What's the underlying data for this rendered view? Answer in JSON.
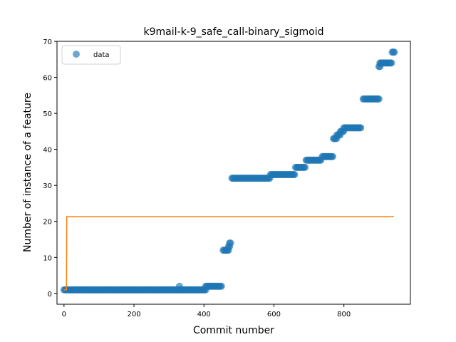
{
  "chart_data": {
    "type": "scatter",
    "title": "k9mail-k-9_safe_call-binary_sigmoid",
    "xlabel": "Commit number",
    "ylabel": "Number of instance of a feature",
    "xlim": [
      -20,
      990
    ],
    "ylim": [
      -3,
      70
    ],
    "xticks": [
      0,
      200,
      400,
      600,
      800
    ],
    "yticks": [
      0,
      10,
      20,
      30,
      40,
      50,
      60,
      70
    ],
    "grid": false,
    "legend": {
      "position": "top-left",
      "entries": [
        "data"
      ]
    },
    "colors": {
      "data": "#1f77b4",
      "fit": "#ff7f0e"
    },
    "series": [
      {
        "name": "data",
        "kind": "scatter",
        "segments": [
          {
            "x_start": 0,
            "x_end": 405,
            "y": 1
          },
          {
            "x_start": 330,
            "x_end": 330,
            "y": 2
          },
          {
            "x_start": 405,
            "x_end": 450,
            "y": 2
          },
          {
            "x_start": 455,
            "x_end": 470,
            "y": 12
          },
          {
            "x_start": 470,
            "x_end": 475,
            "y": 13
          },
          {
            "x_start": 473,
            "x_end": 478,
            "y": 14
          },
          {
            "x_start": 480,
            "x_end": 590,
            "y": 32
          },
          {
            "x_start": 590,
            "x_end": 660,
            "y": 33
          },
          {
            "x_start": 662,
            "x_end": 690,
            "y": 35
          },
          {
            "x_start": 692,
            "x_end": 735,
            "y": 37
          },
          {
            "x_start": 738,
            "x_end": 770,
            "y": 38
          },
          {
            "x_start": 770,
            "x_end": 780,
            "y": 43
          },
          {
            "x_start": 780,
            "x_end": 790,
            "y": 44
          },
          {
            "x_start": 790,
            "x_end": 800,
            "y": 45
          },
          {
            "x_start": 800,
            "x_end": 850,
            "y": 46
          },
          {
            "x_start": 855,
            "x_end": 900,
            "y": 54
          },
          {
            "x_start": 900,
            "x_end": 903,
            "y": 63
          },
          {
            "x_start": 903,
            "x_end": 938,
            "y": 64
          },
          {
            "x_start": 938,
            "x_end": 944,
            "y": 67
          }
        ]
      },
      {
        "kind": "line",
        "points": [
          [
            0,
            1
          ],
          [
            7,
            1
          ],
          [
            8,
            21.3
          ],
          [
            943,
            21.3
          ]
        ]
      }
    ]
  }
}
